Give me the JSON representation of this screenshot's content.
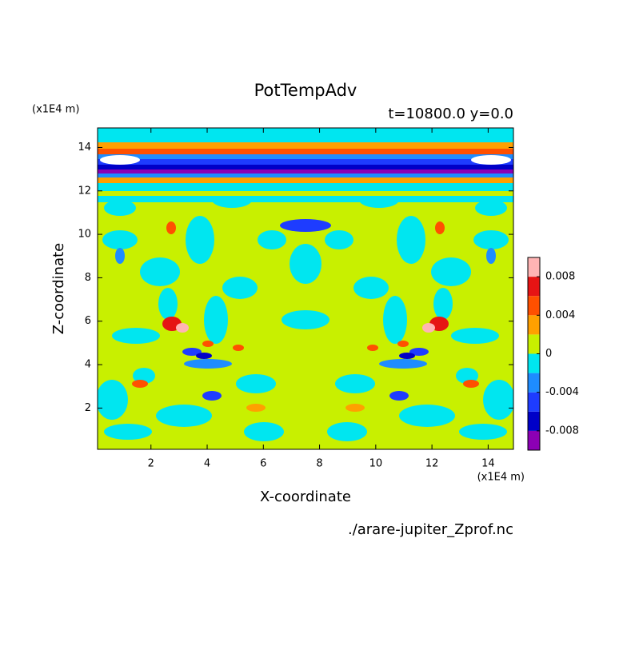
{
  "chart_data": {
    "type": "contour",
    "title": "PotTempAdv",
    "subtitle": "t=10800.0 y=0.0",
    "x_label": "X-coordinate",
    "y_label": "Z-coordinate",
    "x_unit": "(x1E4 m)",
    "y_unit": "(x1E4 m)",
    "source": "./arare-jupiter_Zprof.nc",
    "xlim": [
      0.1,
      14.9
    ],
    "ylim": [
      0.1,
      14.9
    ],
    "xticks": [
      2,
      4,
      6,
      8,
      10,
      12,
      14
    ],
    "yticks": [
      2,
      4,
      6,
      8,
      10,
      12,
      14
    ],
    "colorbar": {
      "levels": [
        -0.01,
        -0.008,
        -0.006,
        -0.004,
        -0.002,
        0,
        0.002,
        0.004,
        0.006,
        0.008,
        0.01
      ],
      "colors": [
        "#8c00b4",
        "#0000c8",
        "#1e3cff",
        "#1e8cff",
        "#00e6f0",
        "#c8f000",
        "#ffa000",
        "#ff5000",
        "#e61414",
        "#ffb4b4"
      ],
      "ticks": [
        -0.008,
        -0.004,
        0,
        0.004,
        0.008
      ]
    }
  }
}
